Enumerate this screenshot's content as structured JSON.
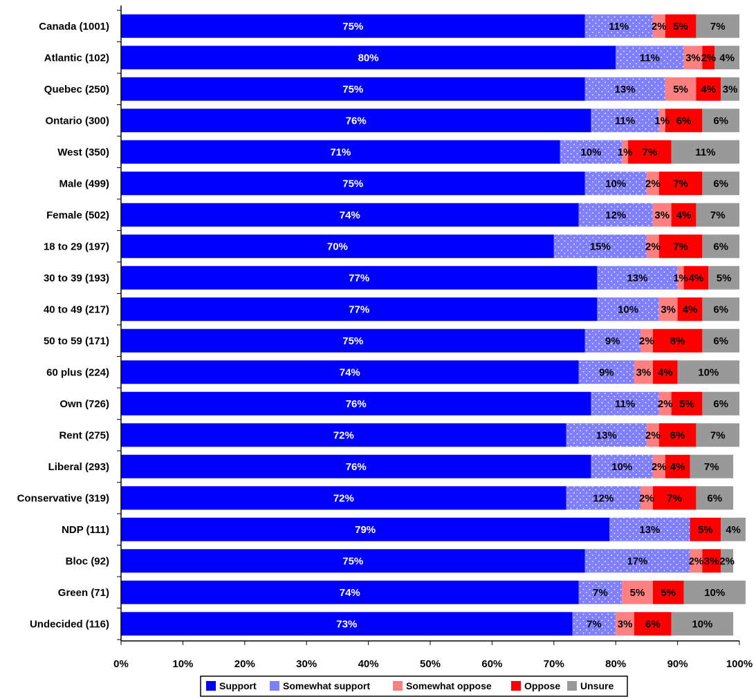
{
  "chart_data": {
    "type": "bar",
    "orientation": "horizontal",
    "stacked": true,
    "categories": [
      "Canada (1001)",
      "Atlantic (102)",
      "Quebec (250)",
      "Ontario (300)",
      "West (350)",
      "Male (499)",
      "Female (502)",
      "18 to 29 (197)",
      "30 to 39 (193)",
      "40 to 49 (217)",
      "50 to 59 (171)",
      "60 plus (224)",
      "Own (726)",
      "Rent (275)",
      "Liberal (293)",
      "Conservative (319)",
      "NDP (111)",
      "Bloc (92)",
      "Green (71)",
      "Undecided (116)"
    ],
    "series": [
      {
        "name": "Support",
        "color": "#0000ff",
        "values": [
          75,
          80,
          75,
          76,
          71,
          75,
          74,
          70,
          77,
          77,
          75,
          74,
          76,
          72,
          76,
          72,
          79,
          75,
          74,
          73
        ]
      },
      {
        "name": "Somewhat support",
        "color": "#8080ff",
        "values": [
          11,
          11,
          13,
          11,
          10,
          10,
          12,
          15,
          13,
          10,
          9,
          9,
          11,
          13,
          10,
          12,
          13,
          17,
          7,
          7
        ]
      },
      {
        "name": "Somewhat oppose",
        "color": "#ff8080",
        "values": [
          2,
          3,
          5,
          1,
          1,
          2,
          3,
          2,
          1,
          3,
          2,
          3,
          2,
          2,
          2,
          2,
          0,
          2,
          5,
          3
        ]
      },
      {
        "name": "Oppose",
        "color": "#ff0000",
        "values": [
          5,
          2,
          4,
          6,
          7,
          7,
          4,
          7,
          4,
          4,
          8,
          4,
          5,
          6,
          4,
          7,
          5,
          3,
          5,
          6
        ]
      },
      {
        "name": "Unsure",
        "color": "#999999",
        "values": [
          7,
          4,
          3,
          6,
          11,
          6,
          7,
          6,
          5,
          6,
          6,
          10,
          6,
          7,
          7,
          6,
          4,
          2,
          10,
          10
        ]
      }
    ],
    "labels": [
      [
        "75%",
        "11%",
        "2%",
        "5%",
        "7%"
      ],
      [
        "80%",
        "11%",
        "3%",
        "2%",
        "4%"
      ],
      [
        "75%",
        "13%",
        "5%",
        "4%",
        "3%"
      ],
      [
        "76%",
        "11%",
        "1%",
        "6%",
        "6%"
      ],
      [
        "71%",
        "10%",
        "1%",
        "7%",
        "11%"
      ],
      [
        "75%",
        "10%",
        "2%",
        "7%",
        "6%"
      ],
      [
        "74%",
        "12%",
        "3%",
        "4%",
        "7%"
      ],
      [
        "70%",
        "15%",
        "2%",
        "7%",
        "6%"
      ],
      [
        "77%",
        "13%",
        "1%",
        "4%",
        "5%"
      ],
      [
        "77%",
        "10%",
        "3%",
        "4%",
        "6%"
      ],
      [
        "75%",
        "9%",
        "2%",
        "8%",
        "6%"
      ],
      [
        "74%",
        "9%",
        "3%",
        "4%",
        "10%"
      ],
      [
        "76%",
        "11%",
        "2%",
        "5%",
        "6%"
      ],
      [
        "72%",
        "13%",
        "2%",
        "6%",
        "7%"
      ],
      [
        "76%",
        "10%",
        "2%",
        "4%",
        "7%"
      ],
      [
        "72%",
        "12%",
        "2%",
        "7%",
        "6%"
      ],
      [
        "79%",
        "13%",
        "",
        "5%",
        "4%"
      ],
      [
        "75%",
        "17%",
        "2%",
        "3%",
        "2%"
      ],
      [
        "74%",
        "7%",
        "5%",
        "5%",
        "10%"
      ],
      [
        "73%",
        "7%",
        "3%",
        "6%",
        "10%"
      ]
    ],
    "xticks": [
      "0%",
      "10%",
      "20%",
      "30%",
      "40%",
      "50%",
      "60%",
      "70%",
      "80%",
      "90%",
      "100%"
    ],
    "xlim": [
      0,
      100
    ],
    "legend_position": "bottom"
  }
}
